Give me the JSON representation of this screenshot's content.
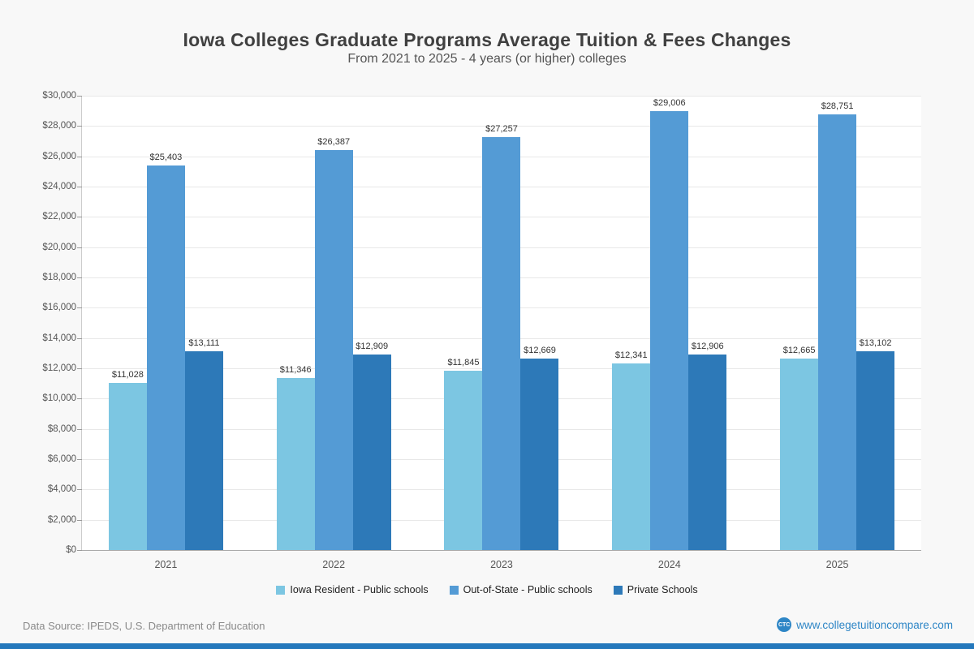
{
  "header": {
    "title": "Iowa Colleges Graduate Programs Average Tuition & Fees Changes",
    "subtitle": "From 2021 to 2025 - 4 years (or higher) colleges"
  },
  "chart_data": {
    "type": "bar",
    "title": "Iowa Colleges Graduate Programs Average Tuition & Fees Changes",
    "subtitle": "From 2021 to 2025 - 4 years (or higher) colleges",
    "categories": [
      "2021",
      "2022",
      "2023",
      "2024",
      "2025"
    ],
    "series": [
      {
        "name": "Iowa Resident - Public schools",
        "color": "#7cc6e2",
        "values": [
          11028,
          11346,
          11845,
          12341,
          12665
        ]
      },
      {
        "name": "Out-of-State - Public schools",
        "color": "#549bd5",
        "values": [
          25403,
          26387,
          27257,
          29006,
          28751
        ]
      },
      {
        "name": "Private Schools",
        "color": "#2d79b8",
        "values": [
          13111,
          12909,
          12669,
          12906,
          13102
        ]
      }
    ],
    "ylim": [
      0,
      30000
    ],
    "ytick_step": 2000,
    "value_prefix": "$",
    "grid": true,
    "legend_position": "bottom"
  },
  "footer": {
    "source": "Data Source: IPEDS, U.S. Department of Education",
    "website": "www.collegetuitioncompare.com",
    "logo_text": "CTC"
  },
  "colors": {
    "accent_bar": "#2478bc",
    "background": "#f8f8f8",
    "plot_background": "#ffffff"
  }
}
